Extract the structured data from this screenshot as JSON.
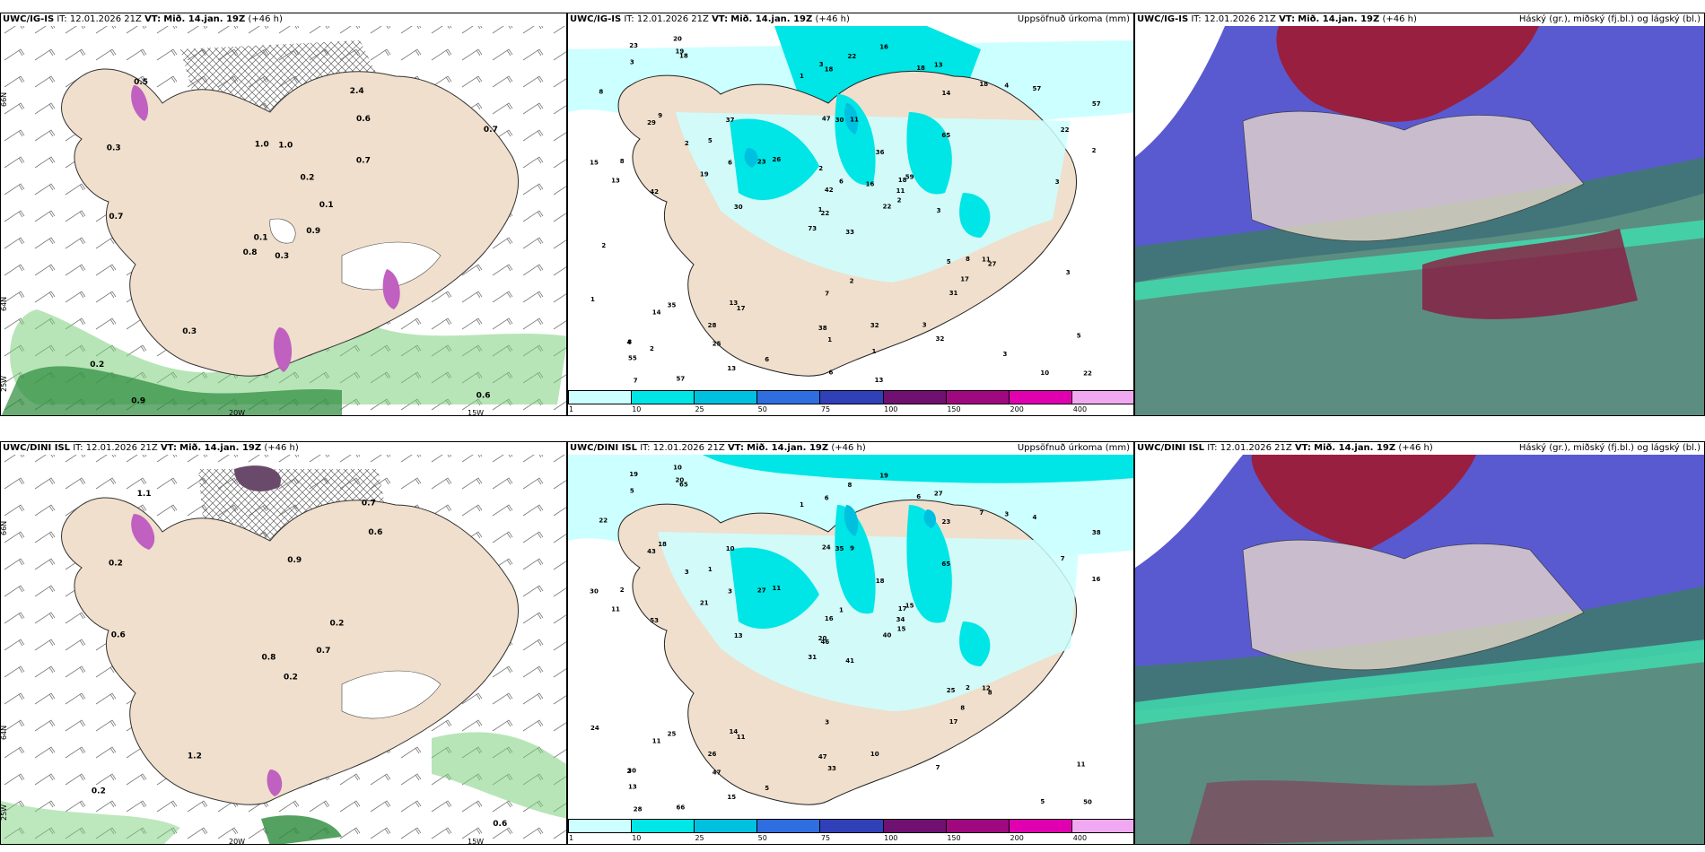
{
  "top": {
    "wind": {
      "model": "UWC/IG-IS",
      "it": "IT: 12.01.2026 21Z",
      "vt_label": "VT:",
      "vt": "Mið. 14.jan. 19Z",
      "lead": "(+46 h)"
    },
    "precip": {
      "model": "UWC/IG-IS",
      "it": "IT: 12.01.2026 21Z",
      "vt_label": "VT:",
      "vt": "Mið. 14.jan. 19Z",
      "lead": "(+46 h)",
      "right": "Uppsöfnuð úrkoma (mm)"
    },
    "cloud": {
      "model": "UWC/IG-IS",
      "it": "IT: 12.01.2026 21Z",
      "vt_label": "VT:",
      "vt": "Mið. 14.jan. 19Z",
      "lead": "(+46 h)",
      "right": "Háský (gr.), miðský (fj.bl.) og lágský (bl.)"
    }
  },
  "bottom": {
    "wind": {
      "model": "UWC/DINI ISL",
      "it": "IT: 12.01.2026 21Z",
      "vt_label": "VT:",
      "vt": "Mið. 14.jan. 19Z",
      "lead": "(+46 h)"
    },
    "precip": {
      "model": "UWC/DINI ISL",
      "it": "IT: 12.01.2026 21Z",
      "vt_label": "VT:",
      "vt": "Mið. 14.jan. 19Z",
      "lead": "(+46 h)",
      "right": "Uppsöfnuð úrkoma (mm)"
    },
    "cloud": {
      "model": "UWC/DINI ISL",
      "it": "IT: 12.01.2026 21Z",
      "vt_label": "VT:",
      "vt": "Mið. 14.jan. 19Z",
      "lead": "(+46 h)",
      "right": "Háský (gr.), miðský (fj.bl.) og lágský (bl.)"
    }
  },
  "axis": {
    "lat66": "66N",
    "lat64": "64N",
    "lon20": "20W",
    "lon15": "15W",
    "lon25": "25W"
  },
  "colorbar": {
    "ticks": [
      "1",
      "10",
      "25",
      "50",
      "75",
      "100",
      "150",
      "200",
      "400"
    ],
    "colors": [
      "#ccffff",
      "#00e5e5",
      "#00c0e0",
      "#2f6ee0",
      "#3040b8",
      "#701070",
      "#a00880",
      "#e000b0",
      "#f0a8f0"
    ]
  },
  "top_wind_labels": [
    "0.3",
    "0.3",
    "0.1",
    "0.2",
    "0.1",
    "0.3",
    "2.4",
    "1.0",
    "0.6",
    "0.9",
    "0.5",
    "0.6",
    "0.7",
    "0.7",
    "0.8",
    "0.7",
    "0.9",
    "1.0",
    "0.2"
  ],
  "bottom_wind_labels": [
    "0.2",
    "0.2",
    "0.8",
    "0.2",
    "0.2",
    "1.2",
    "0.7",
    "0.9",
    "0.6",
    "0.7",
    "1.1",
    "0.6",
    "0.6"
  ],
  "top_precip_labels": [
    "33",
    "29",
    "22",
    "8",
    "18",
    "17",
    "13",
    "11",
    "14",
    "22",
    "18",
    "22",
    "42",
    "57",
    "73",
    "65",
    "57",
    "47",
    "36",
    "35",
    "26",
    "55",
    "25",
    "30",
    "59",
    "27",
    "9",
    "18",
    "13",
    "5",
    "2",
    "1",
    "38",
    "42",
    "37",
    "18",
    "13",
    "10",
    "5",
    "11",
    "16",
    "23",
    "19",
    "31",
    "13",
    "15",
    "11",
    "7",
    "1",
    "2",
    "14",
    "22",
    "8",
    "17",
    "32",
    "28",
    "19",
    "23",
    "32",
    "57",
    "22",
    "30",
    "8",
    "5",
    "4",
    "20",
    "18",
    "1",
    "6",
    "1",
    "7",
    "6",
    "8",
    "6",
    "4",
    "3",
    "2",
    "2",
    "2",
    "1",
    "16",
    "2",
    "3",
    "3",
    "6",
    "3",
    "2",
    "3",
    "13",
    "3",
    "3"
  ],
  "bottom_precip_labels": [
    "41",
    "43",
    "46",
    "30",
    "17",
    "11",
    "27",
    "9",
    "23",
    "40",
    "65",
    "50",
    "53",
    "38",
    "31",
    "65",
    "66",
    "24",
    "18",
    "25",
    "11",
    "13",
    "47",
    "35",
    "15",
    "8",
    "18",
    "6",
    "11",
    "25",
    "16",
    "20",
    "47",
    "16",
    "10",
    "7",
    "14",
    "5",
    "11",
    "12",
    "19",
    "27",
    "21",
    "17",
    "15",
    "30",
    "34",
    "28",
    "33",
    "15",
    "11",
    "7",
    "22",
    "8",
    "7",
    "26",
    "20",
    "19",
    "10",
    "4",
    "8",
    "13",
    "2",
    "1",
    "3",
    "10",
    "6",
    "1",
    "1",
    "24",
    "3",
    "5",
    "2",
    "3",
    "2",
    "5",
    "3"
  ]
}
